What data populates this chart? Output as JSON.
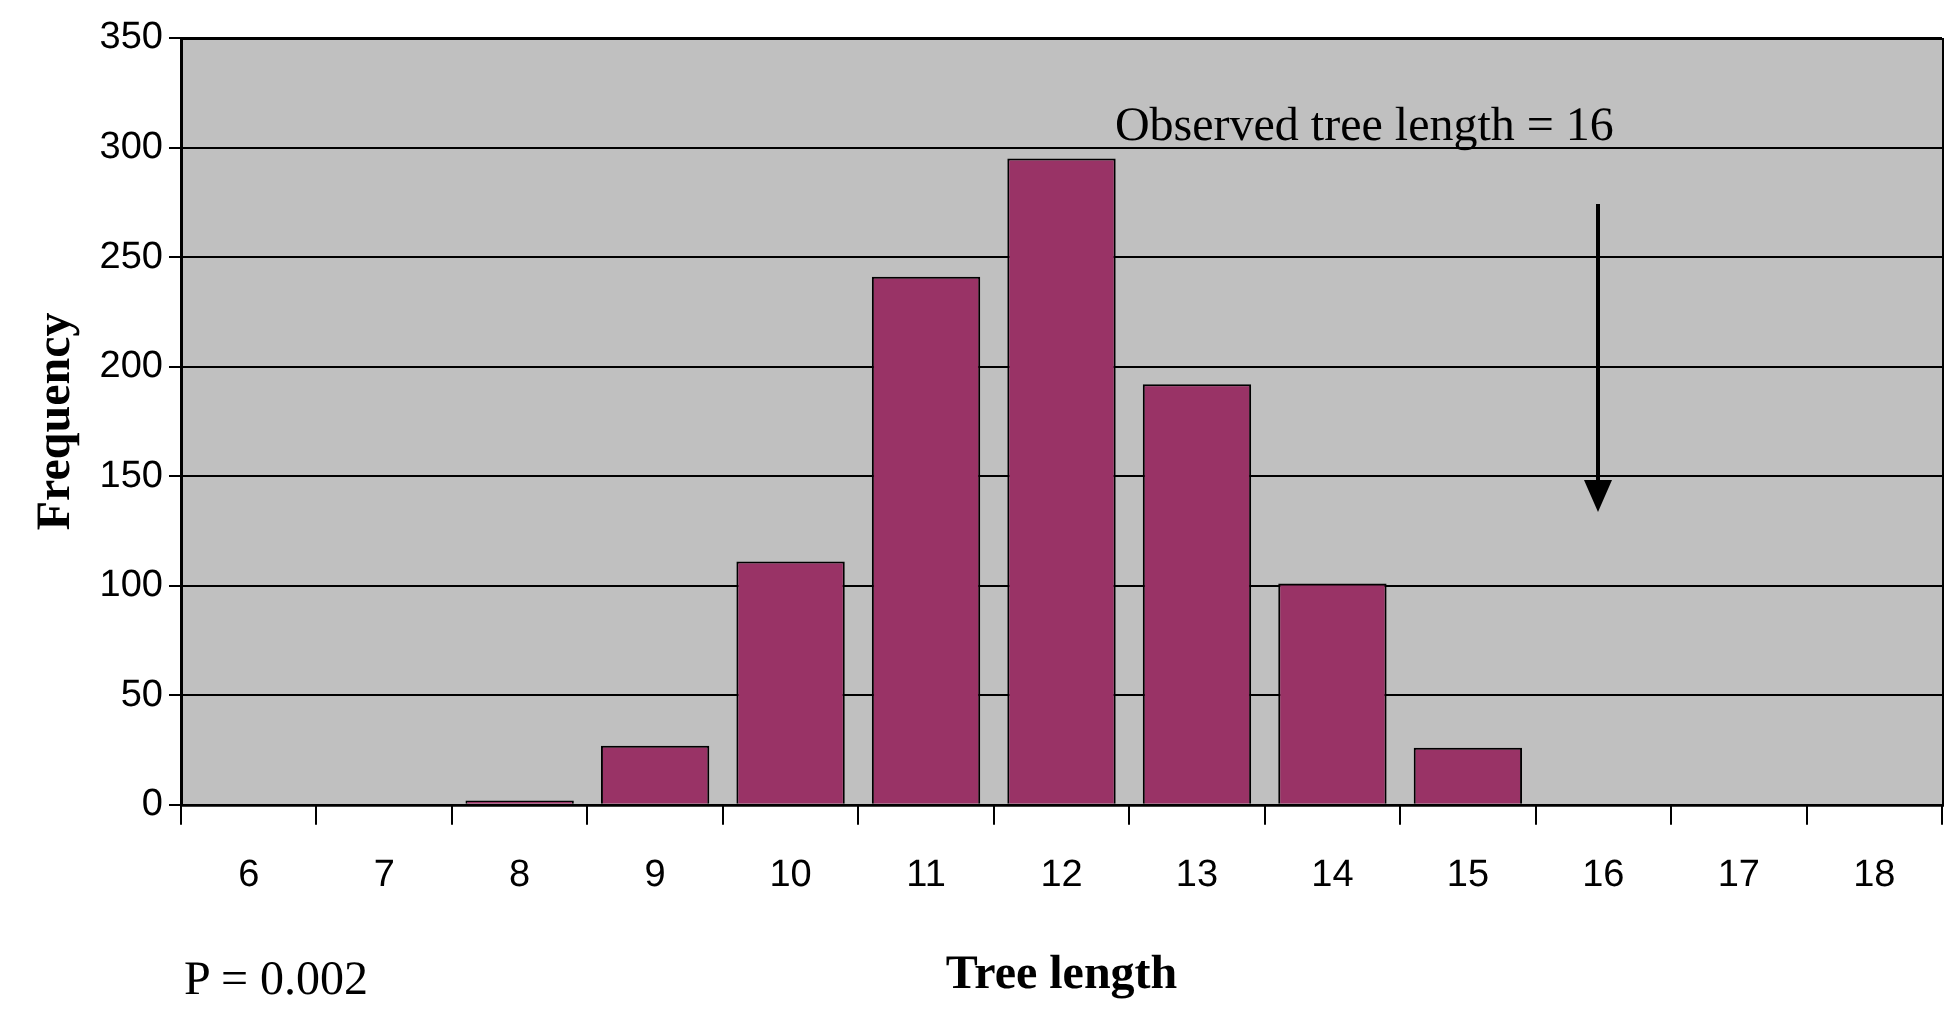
{
  "chart_data": {
    "type": "bar",
    "categories": [
      "6",
      "7",
      "8",
      "9",
      "10",
      "11",
      "12",
      "13",
      "14",
      "15",
      "16",
      "17",
      "18"
    ],
    "values": [
      0,
      0,
      2,
      27,
      111,
      241,
      295,
      192,
      101,
      26,
      0,
      0,
      0
    ],
    "color": "#993366",
    "xlabel": "Tree length",
    "ylabel": "Frequency",
    "ylim": [
      0,
      350
    ],
    "yticks": [
      0,
      50,
      100,
      150,
      200,
      250,
      300,
      350
    ],
    "grid": "y",
    "legend": false,
    "annotations": [
      "Observed tree length = 16",
      "P = 0.002"
    ]
  }
}
